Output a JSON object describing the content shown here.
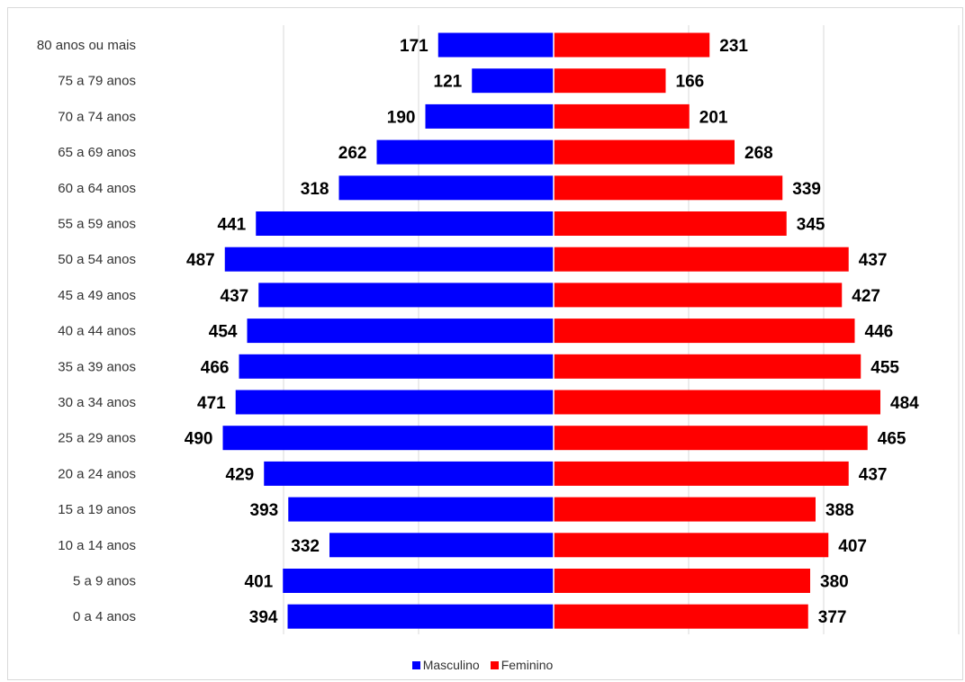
{
  "chart_data": {
    "type": "bar",
    "orientation": "horizontal-population-pyramid",
    "categories": [
      "80 anos ou mais",
      "75 a 79 anos",
      "70 a 74 anos",
      "65 a 69 anos",
      "60 a 64 anos",
      "55 a 59 anos",
      "50 a 54 anos",
      "45 a 49 anos",
      "40 a 44 anos",
      "35 a 39 anos",
      "30 a 34 anos",
      "25 a 29 anos",
      "20 a 24 anos",
      "15 a 19 anos",
      "10 a 14 anos",
      "5 a 9 anos",
      "0 a 4 anos"
    ],
    "series": [
      {
        "name": "Masculino",
        "color": "#0000ff",
        "side": "left",
        "values": [
          171,
          121,
          190,
          262,
          318,
          441,
          487,
          437,
          454,
          466,
          471,
          490,
          429,
          393,
          332,
          401,
          394
        ]
      },
      {
        "name": "Feminino",
        "color": "#ff0000",
        "side": "right",
        "values": [
          231,
          166,
          201,
          268,
          339,
          345,
          437,
          427,
          446,
          455,
          484,
          465,
          437,
          388,
          407,
          380,
          377
        ]
      }
    ],
    "xlim": [
      -600,
      600
    ],
    "grid": "vertical gridlines every 200",
    "legend_position": "bottom-center",
    "data_labels": true
  },
  "legend": {
    "items": [
      "Masculino",
      "Feminino"
    ]
  }
}
